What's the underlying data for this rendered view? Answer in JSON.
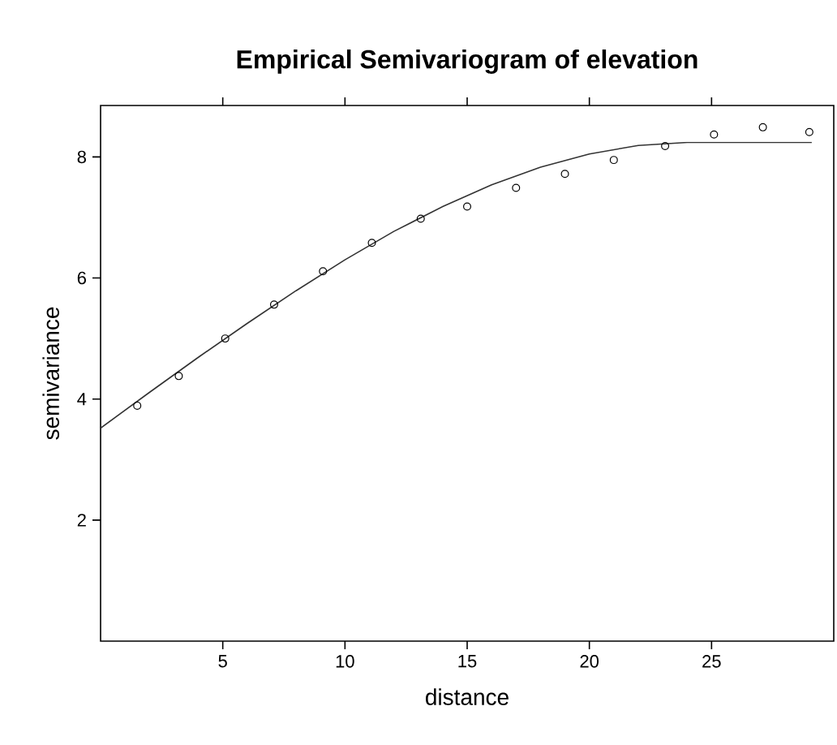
{
  "chart_data": {
    "type": "scatter",
    "title": "Empirical Semivariogram of elevation",
    "xlabel": "distance",
    "ylabel": "semivariance",
    "xlim": [
      0,
      30
    ],
    "ylim": [
      0,
      8.85
    ],
    "xticks": [
      5,
      10,
      15,
      20,
      25
    ],
    "yticks": [
      2,
      4,
      6,
      8
    ],
    "grid": false,
    "marker": "circle",
    "series": [
      {
        "color": "#000000",
        "x": [
          1.5,
          3.2,
          5.1,
          7.1,
          9.1,
          11.1,
          13.1,
          15.0,
          17.0,
          19.0,
          21.0,
          23.1,
          25.1,
          27.1,
          29.0
        ],
        "values": [
          3.89,
          4.38,
          5.0,
          5.56,
          6.11,
          6.58,
          6.98,
          7.18,
          7.49,
          7.72,
          7.95,
          8.18,
          8.37,
          8.49,
          8.41
        ]
      },
      {
        "type": "line",
        "color": "#333333",
        "marker": "none",
        "line_style": "solid",
        "x": [
          0,
          2,
          4,
          6,
          8,
          10,
          12,
          14,
          16,
          18,
          20,
          22,
          24,
          29.1
        ],
        "values": [
          3.52,
          4.11,
          4.69,
          5.25,
          5.79,
          6.3,
          6.77,
          7.18,
          7.54,
          7.83,
          8.05,
          8.19,
          8.24,
          8.24
        ]
      }
    ]
  }
}
